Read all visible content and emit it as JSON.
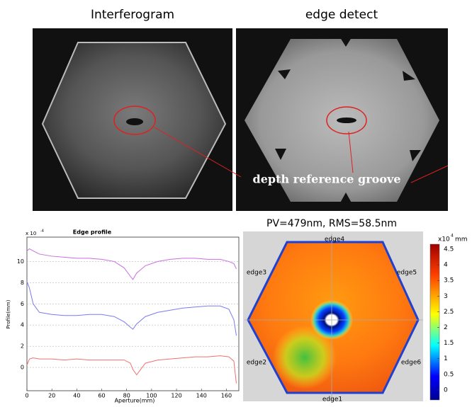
{
  "panels": {
    "interferogram_title": "Interferogram",
    "edge_detect_title": "edge detect",
    "annotation": "depth reference groove",
    "map_title": "PV=479nm, RMS=58.5nm",
    "edge_labels": [
      "edge1",
      "edge2",
      "edge3",
      "edge4",
      "edge5",
      "edge6"
    ]
  },
  "colormap": {
    "unit_base": "x10",
    "unit_exponent": "4",
    "unit": "mm",
    "lim": [
      -0.32,
      4.66
    ],
    "ticks": [
      0,
      0.5,
      1,
      1.5,
      2,
      2.5,
      3,
      3.5,
      4,
      4.5
    ]
  },
  "chart_data": {
    "type": "line",
    "title": "Edge profile",
    "x_label": "Aperture(mm)",
    "y_label": "Profile(mm)",
    "y_multiplier_base": "x 10",
    "y_multiplier_exponent": "-4",
    "x": [
      0,
      2,
      5,
      10,
      20,
      30,
      40,
      50,
      60,
      70,
      78,
      83,
      85,
      88,
      95,
      105,
      115,
      125,
      135,
      145,
      155,
      162,
      166,
      168
    ],
    "series": [
      {
        "color": "#c86ee0",
        "values": [
          11,
          11.2,
          11,
          10.7,
          10.5,
          10.4,
          10.3,
          10.3,
          10.2,
          10.0,
          9.4,
          8.6,
          8.3,
          8.9,
          9.6,
          10.0,
          10.2,
          10.3,
          10.3,
          10.2,
          10.2,
          10.0,
          9.8,
          9.3
        ]
      },
      {
        "color": "#7b7bf0",
        "values": [
          8.1,
          7.5,
          6,
          5.2,
          5.0,
          4.9,
          4.9,
          5.0,
          5.0,
          4.8,
          4.3,
          3.8,
          3.6,
          4.1,
          4.8,
          5.2,
          5.4,
          5.6,
          5.7,
          5.8,
          5.8,
          5.5,
          4.5,
          3
        ]
      },
      {
        "color": "#f07070",
        "values": [
          0.2,
          0.8,
          0.9,
          0.8,
          0.8,
          0.7,
          0.8,
          0.7,
          0.7,
          0.7,
          0.7,
          0.4,
          -0.2,
          -0.7,
          0.4,
          0.7,
          0.8,
          0.9,
          1.0,
          1.0,
          1.1,
          1.0,
          0.6,
          -1.5
        ]
      }
    ],
    "xlim": [
      0,
      170
    ],
    "xticks": [
      0,
      20,
      40,
      60,
      80,
      100,
      120,
      140,
      160
    ],
    "ylim": [
      -2.2,
      12.3
    ],
    "yticks": [
      0,
      2,
      4,
      6,
      8,
      10
    ],
    "grid": true
  }
}
